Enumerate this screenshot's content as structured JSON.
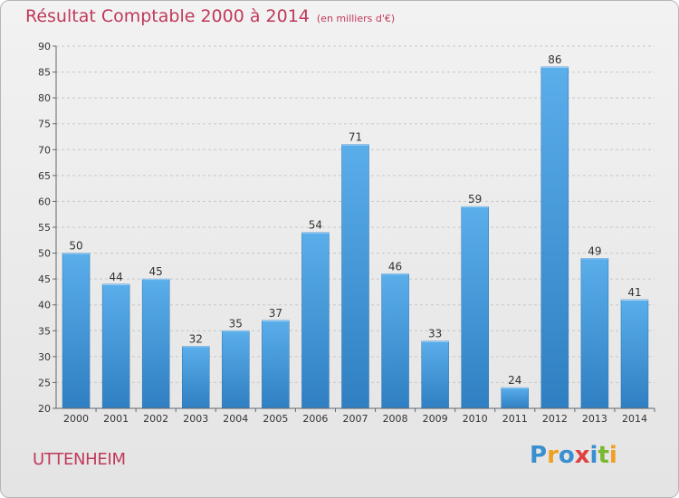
{
  "title": "Résultat Comptable 2000 à 2014",
  "subtitle": "(en milliers d'€)",
  "commune": "UTTENHEIM",
  "logo": {
    "letters": [
      "P",
      "r",
      "o",
      "x",
      "i",
      "t",
      "i"
    ],
    "colors": [
      "#3a8fd1",
      "#f0a020",
      "#3a8fd1",
      "#e04040",
      "#3a8fd1",
      "#7ab82e",
      "#f0a020"
    ]
  },
  "chart_data": {
    "type": "bar",
    "categories": [
      "2000",
      "2001",
      "2002",
      "2003",
      "2004",
      "2005",
      "2006",
      "2007",
      "2008",
      "2009",
      "2010",
      "2011",
      "2012",
      "2013",
      "2014"
    ],
    "values": [
      50,
      44,
      45,
      32,
      35,
      37,
      54,
      71,
      46,
      33,
      59,
      24,
      86,
      49,
      41
    ],
    "data_labels": [
      "50",
      "44",
      "45",
      "32",
      "35",
      "37",
      "54",
      "71",
      "46",
      "33",
      "59",
      "24",
      "86",
      "49",
      "41"
    ],
    "ylim": [
      20,
      90
    ],
    "yticks": [
      20,
      25,
      30,
      35,
      40,
      45,
      50,
      55,
      60,
      65,
      70,
      75,
      80,
      85,
      90
    ],
    "grid": true,
    "bar_color": "#4a9ee0"
  }
}
